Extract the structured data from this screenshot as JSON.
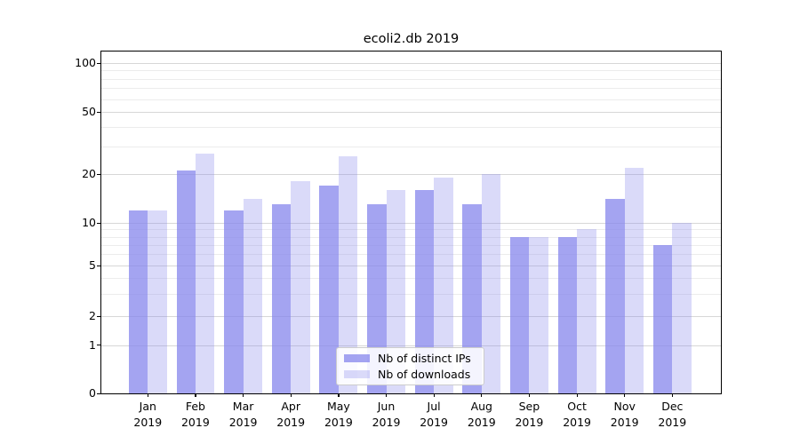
{
  "title": "ecoli2.db 2019",
  "chart_data": {
    "type": "bar",
    "title": "ecoli2.db 2019",
    "categories": [
      "Jan 2019",
      "Feb 2019",
      "Mar 2019",
      "Apr 2019",
      "May 2019",
      "Jun 2019",
      "Jul 2019",
      "Aug 2019",
      "Sep 2019",
      "Oct 2019",
      "Nov 2019",
      "Dec 2019"
    ],
    "series": [
      {
        "name": "Nb of distinct IPs",
        "values": [
          12,
          21,
          12,
          13,
          17,
          13,
          16,
          13,
          8,
          8,
          14,
          7
        ],
        "color": "rgba(133,133,236,0.75)"
      },
      {
        "name": "Nb of downloads",
        "values": [
          12,
          27,
          14,
          18,
          26,
          16,
          19,
          20,
          8,
          9,
          22,
          10
        ],
        "color": "rgba(133,133,236,0.30)"
      }
    ],
    "yscale": "log",
    "ylim": [
      0,
      100
    ],
    "yticks": [
      100,
      50,
      20,
      10,
      5,
      2,
      1,
      0
    ],
    "grid": "on",
    "legend_position": "lower center",
    "xlabel": "",
    "ylabel": ""
  },
  "colors": {
    "bar_base": "#8585ec",
    "grid_major": "#d7d7d7",
    "grid_minor": "#ececec",
    "axis": "#000000",
    "legend_border": "#cccccc",
    "background": "#ffffff"
  }
}
